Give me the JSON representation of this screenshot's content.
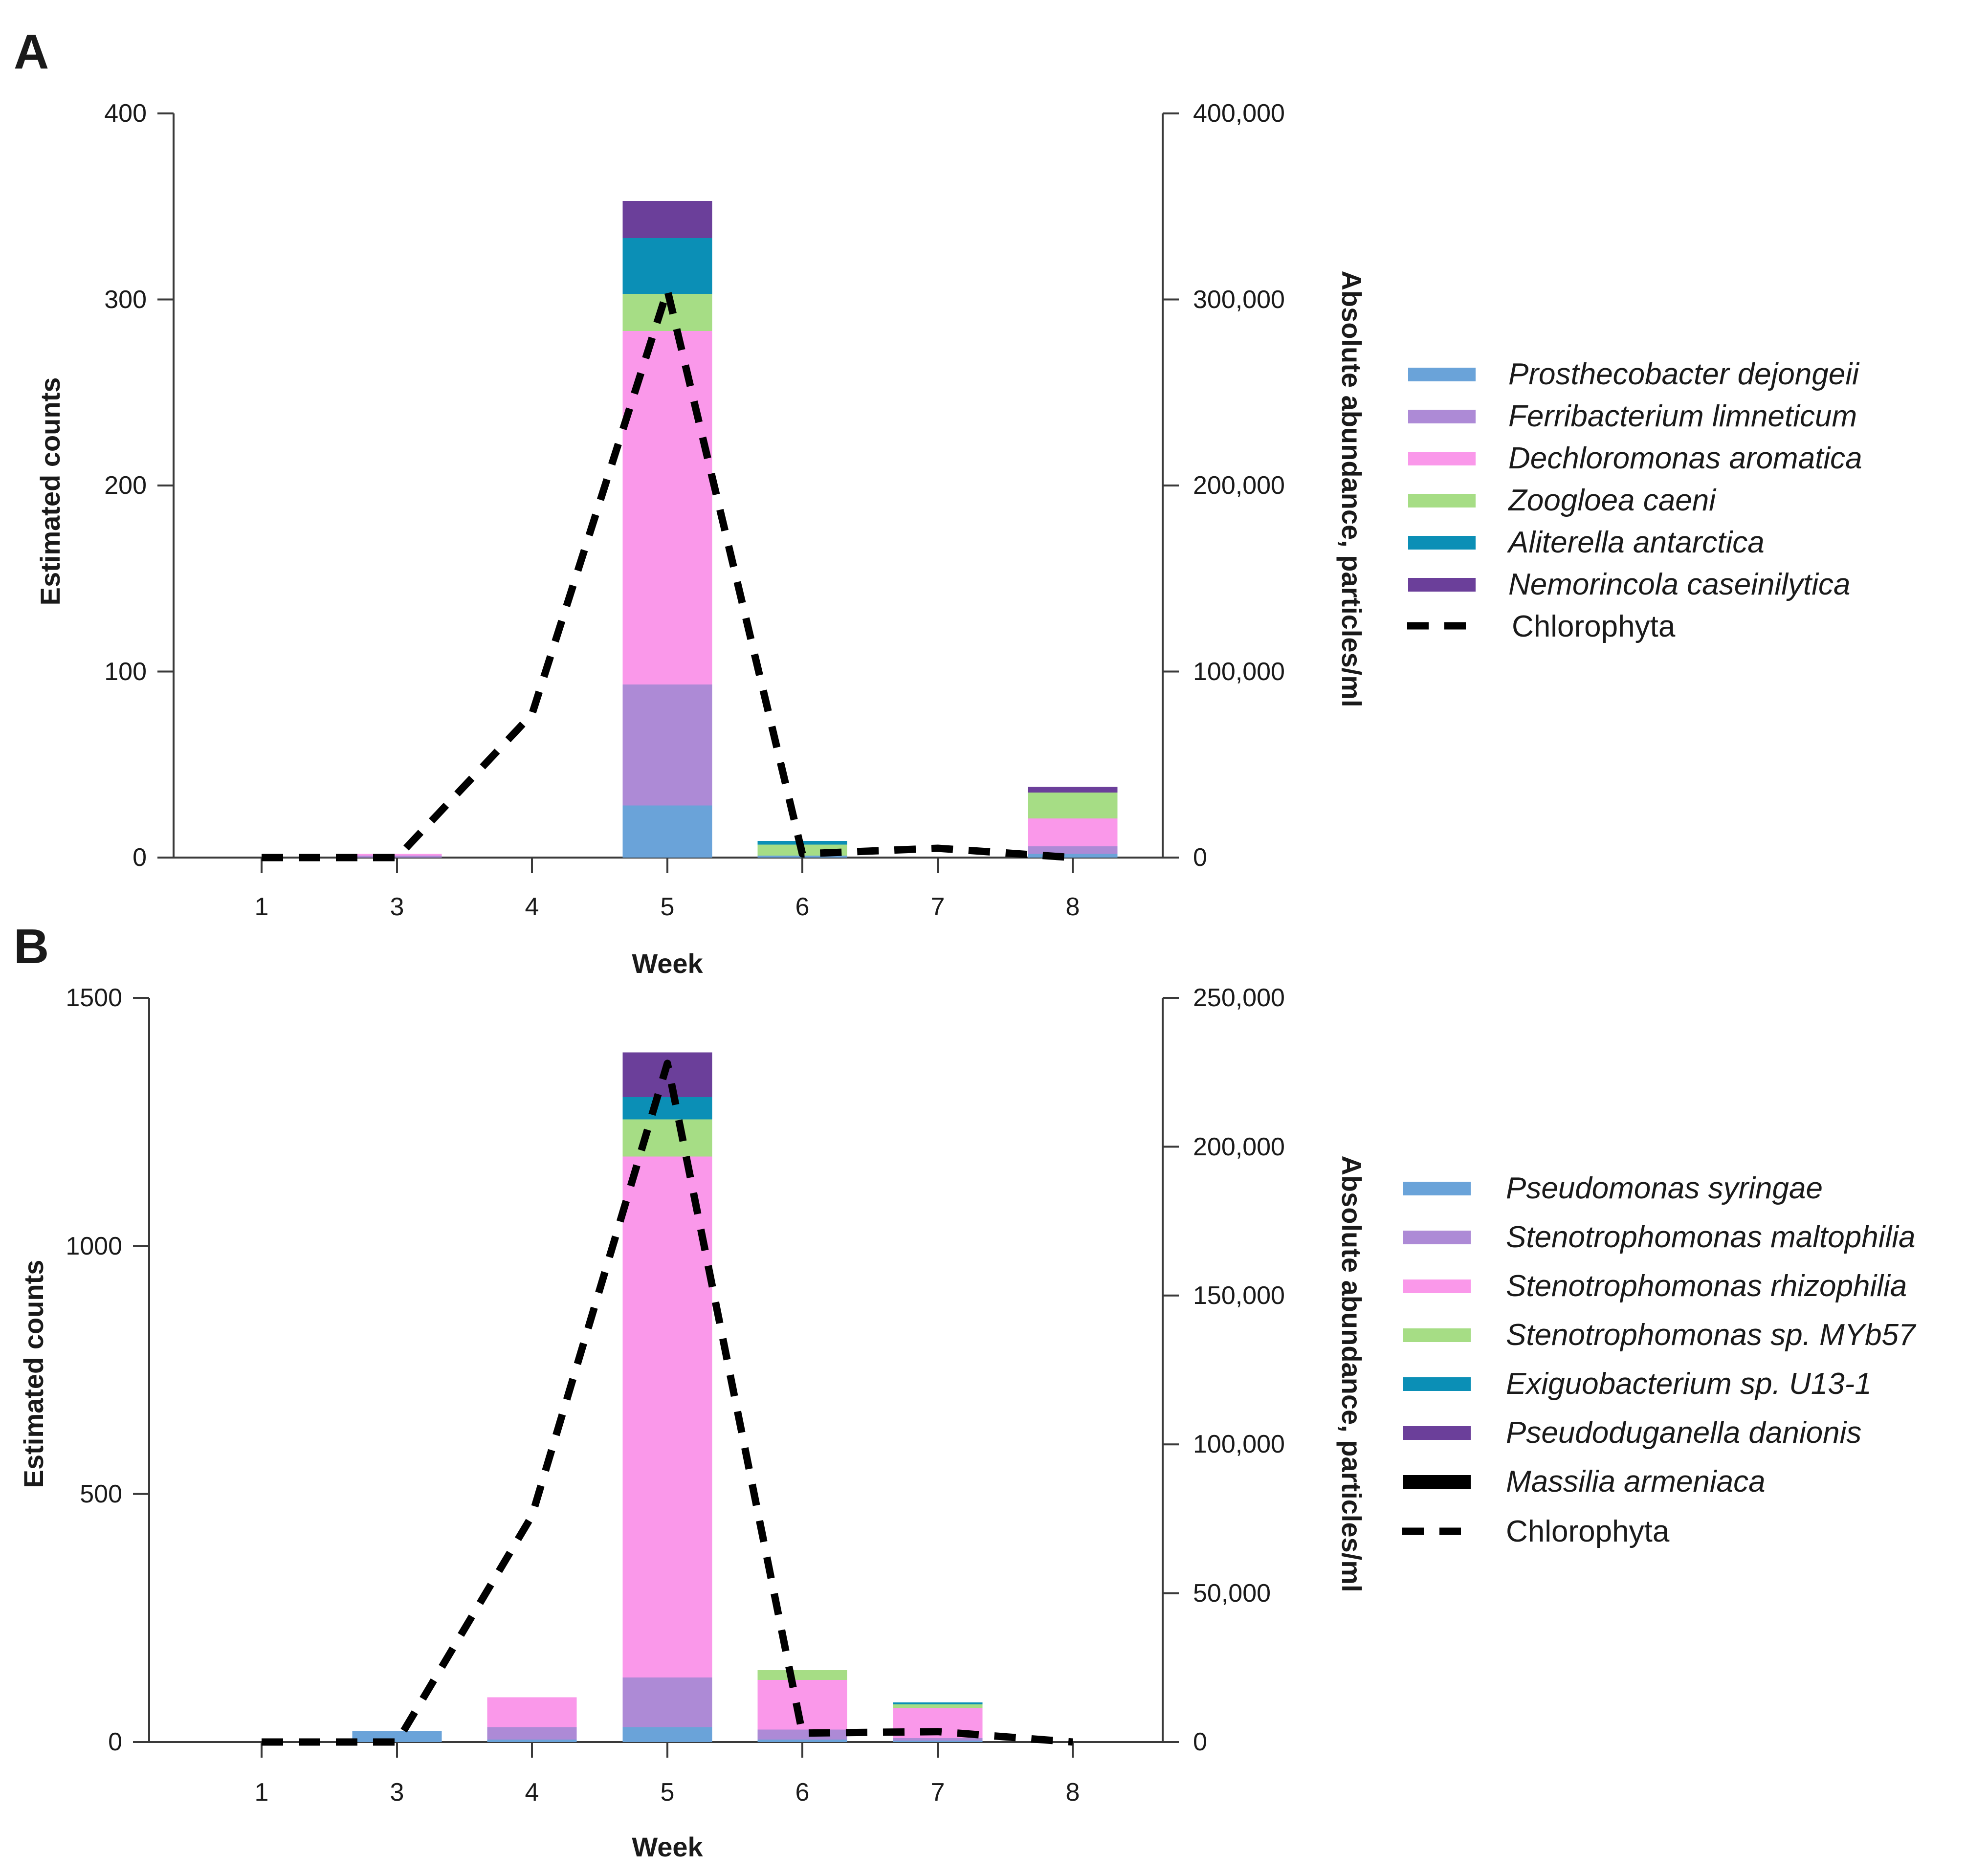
{
  "colors": {
    "prosthecobacter": "#6aa3d9",
    "ferribacterium": "#ad8ad6",
    "dechloromonas": "#fa98ea",
    "zoogloea": "#a6dd85",
    "aliterella": "#0b8fb6",
    "nemorincola": "#6b3f9a",
    "massilia": "#000000",
    "chlorophyta": "#000000"
  },
  "chart_data": [
    {
      "type": "bar",
      "panel_label": "A",
      "stacked": true,
      "categories": [
        "1",
        "3",
        "4",
        "5",
        "6",
        "7",
        "8"
      ],
      "xlabel": "Week",
      "ylabel": "Estimated counts",
      "ylim": [
        0,
        400
      ],
      "yticks": [
        "0",
        "100",
        "200",
        "300",
        "400"
      ],
      "y2label": "Absolute abundance, particles/ml",
      "y2lim": [
        0,
        400000
      ],
      "y2ticks": [
        "0",
        "100,000",
        "200,000",
        "300,000",
        "400,000"
      ],
      "legend_position": "right",
      "series": [
        {
          "name": "Prosthecobacter dejongeii",
          "color": "#6aa3d9",
          "values": [
            0,
            0,
            0,
            28,
            1,
            0,
            2
          ]
        },
        {
          "name": "Ferribacterium limneticum",
          "color": "#ad8ad6",
          "values": [
            0,
            1,
            0,
            65,
            0,
            0,
            4
          ]
        },
        {
          "name": "Dechloromonas aromatica",
          "color": "#fa98ea",
          "values": [
            0,
            1,
            0,
            190,
            0,
            0,
            15
          ]
        },
        {
          "name": "Zoogloea caeni",
          "color": "#a6dd85",
          "values": [
            0,
            0,
            0,
            20,
            6,
            0,
            14
          ]
        },
        {
          "name": "Aliterella antarctica",
          "color": "#0b8fb6",
          "values": [
            0,
            0,
            0,
            30,
            2,
            0,
            0
          ]
        },
        {
          "name": "Nemorincola caseinilytica",
          "color": "#6b3f9a",
          "values": [
            0,
            0,
            0,
            20,
            0,
            0,
            3
          ]
        }
      ],
      "line_series": {
        "name": "Chlorophyta",
        "axis": "secondary",
        "values": [
          0,
          0,
          77000,
          305000,
          2000,
          5000,
          0
        ]
      }
    },
    {
      "type": "bar",
      "panel_label": "B",
      "stacked": true,
      "categories": [
        "1",
        "3",
        "4",
        "5",
        "6",
        "7",
        "8"
      ],
      "xlabel": "Week",
      "ylabel": "Estimated counts",
      "ylim": [
        0,
        1500
      ],
      "yticks": [
        "0",
        "500",
        "1000",
        "1500"
      ],
      "y2label": "Absolute abundance, particles/ml",
      "y2lim": [
        0,
        250000
      ],
      "y2ticks": [
        "0",
        "50,000",
        "100,000",
        "150,000",
        "200,000",
        "250,000"
      ],
      "legend_position": "right",
      "series": [
        {
          "name": "Pseudomonas syringae",
          "color": "#6aa3d9",
          "values": [
            0,
            22,
            5,
            30,
            5,
            3,
            0
          ]
        },
        {
          "name": "Stenotrophomonas maltophilia",
          "color": "#ad8ad6",
          "values": [
            0,
            0,
            25,
            100,
            20,
            5,
            0
          ]
        },
        {
          "name": "Stenotrophomonas rhizophilia",
          "color": "#fa98ea",
          "values": [
            0,
            0,
            60,
            1050,
            100,
            60,
            0
          ]
        },
        {
          "name": "Stenotrophomonas sp. MYb57",
          "color": "#a6dd85",
          "values": [
            0,
            0,
            0,
            75,
            20,
            8,
            0
          ]
        },
        {
          "name": "Exiguobacterium sp. U13-1",
          "color": "#0b8fb6",
          "values": [
            0,
            0,
            0,
            45,
            0,
            4,
            0
          ]
        },
        {
          "name": "Pseudoduganella danionis",
          "color": "#6b3f9a",
          "values": [
            0,
            0,
            0,
            90,
            0,
            0,
            0
          ]
        },
        {
          "name": "Massilia armeniaca",
          "color": "#000000",
          "values": [
            0,
            0,
            0,
            0,
            0,
            0,
            0
          ]
        }
      ],
      "line_series": {
        "name": "Chlorophyta",
        "axis": "secondary",
        "values": [
          0,
          0,
          76000,
          228000,
          3000,
          3500,
          0
        ]
      }
    }
  ]
}
